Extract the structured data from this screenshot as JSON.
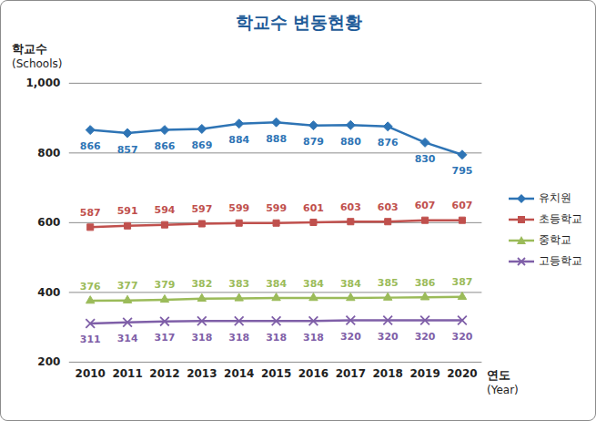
{
  "chart_data": {
    "type": "line",
    "title": "학교수 변동현황",
    "ylabel": "학교수\n(Schools)",
    "xlabel": "연도\n(Year)",
    "categories": [
      "2010",
      "2011",
      "2012",
      "2013",
      "2014",
      "2015",
      "2016",
      "2017",
      "2018",
      "2019",
      "2020"
    ],
    "series": [
      {
        "name": "유치원",
        "color": "#2e74b5",
        "marker": "diamond",
        "values": [
          866,
          857,
          866,
          869,
          884,
          888,
          879,
          880,
          876,
          830,
          795
        ]
      },
      {
        "name": "초등학교",
        "color": "#c0504d",
        "marker": "square",
        "values": [
          587,
          591,
          594,
          597,
          599,
          599,
          601,
          603,
          603,
          607,
          607
        ]
      },
      {
        "name": "중학교",
        "color": "#9bbb59",
        "marker": "triangle",
        "values": [
          376,
          377,
          379,
          382,
          383,
          384,
          384,
          384,
          385,
          386,
          387
        ]
      },
      {
        "name": "고등학교",
        "color": "#7f5fa8",
        "marker": "x",
        "values": [
          311,
          314,
          317,
          318,
          318,
          318,
          318,
          320,
          320,
          320,
          320
        ]
      }
    ],
    "ylim": [
      200,
      1000
    ],
    "yticks": [
      200,
      400,
      600,
      800,
      1000
    ],
    "grid": true,
    "legend": "right",
    "data_labels": true
  }
}
